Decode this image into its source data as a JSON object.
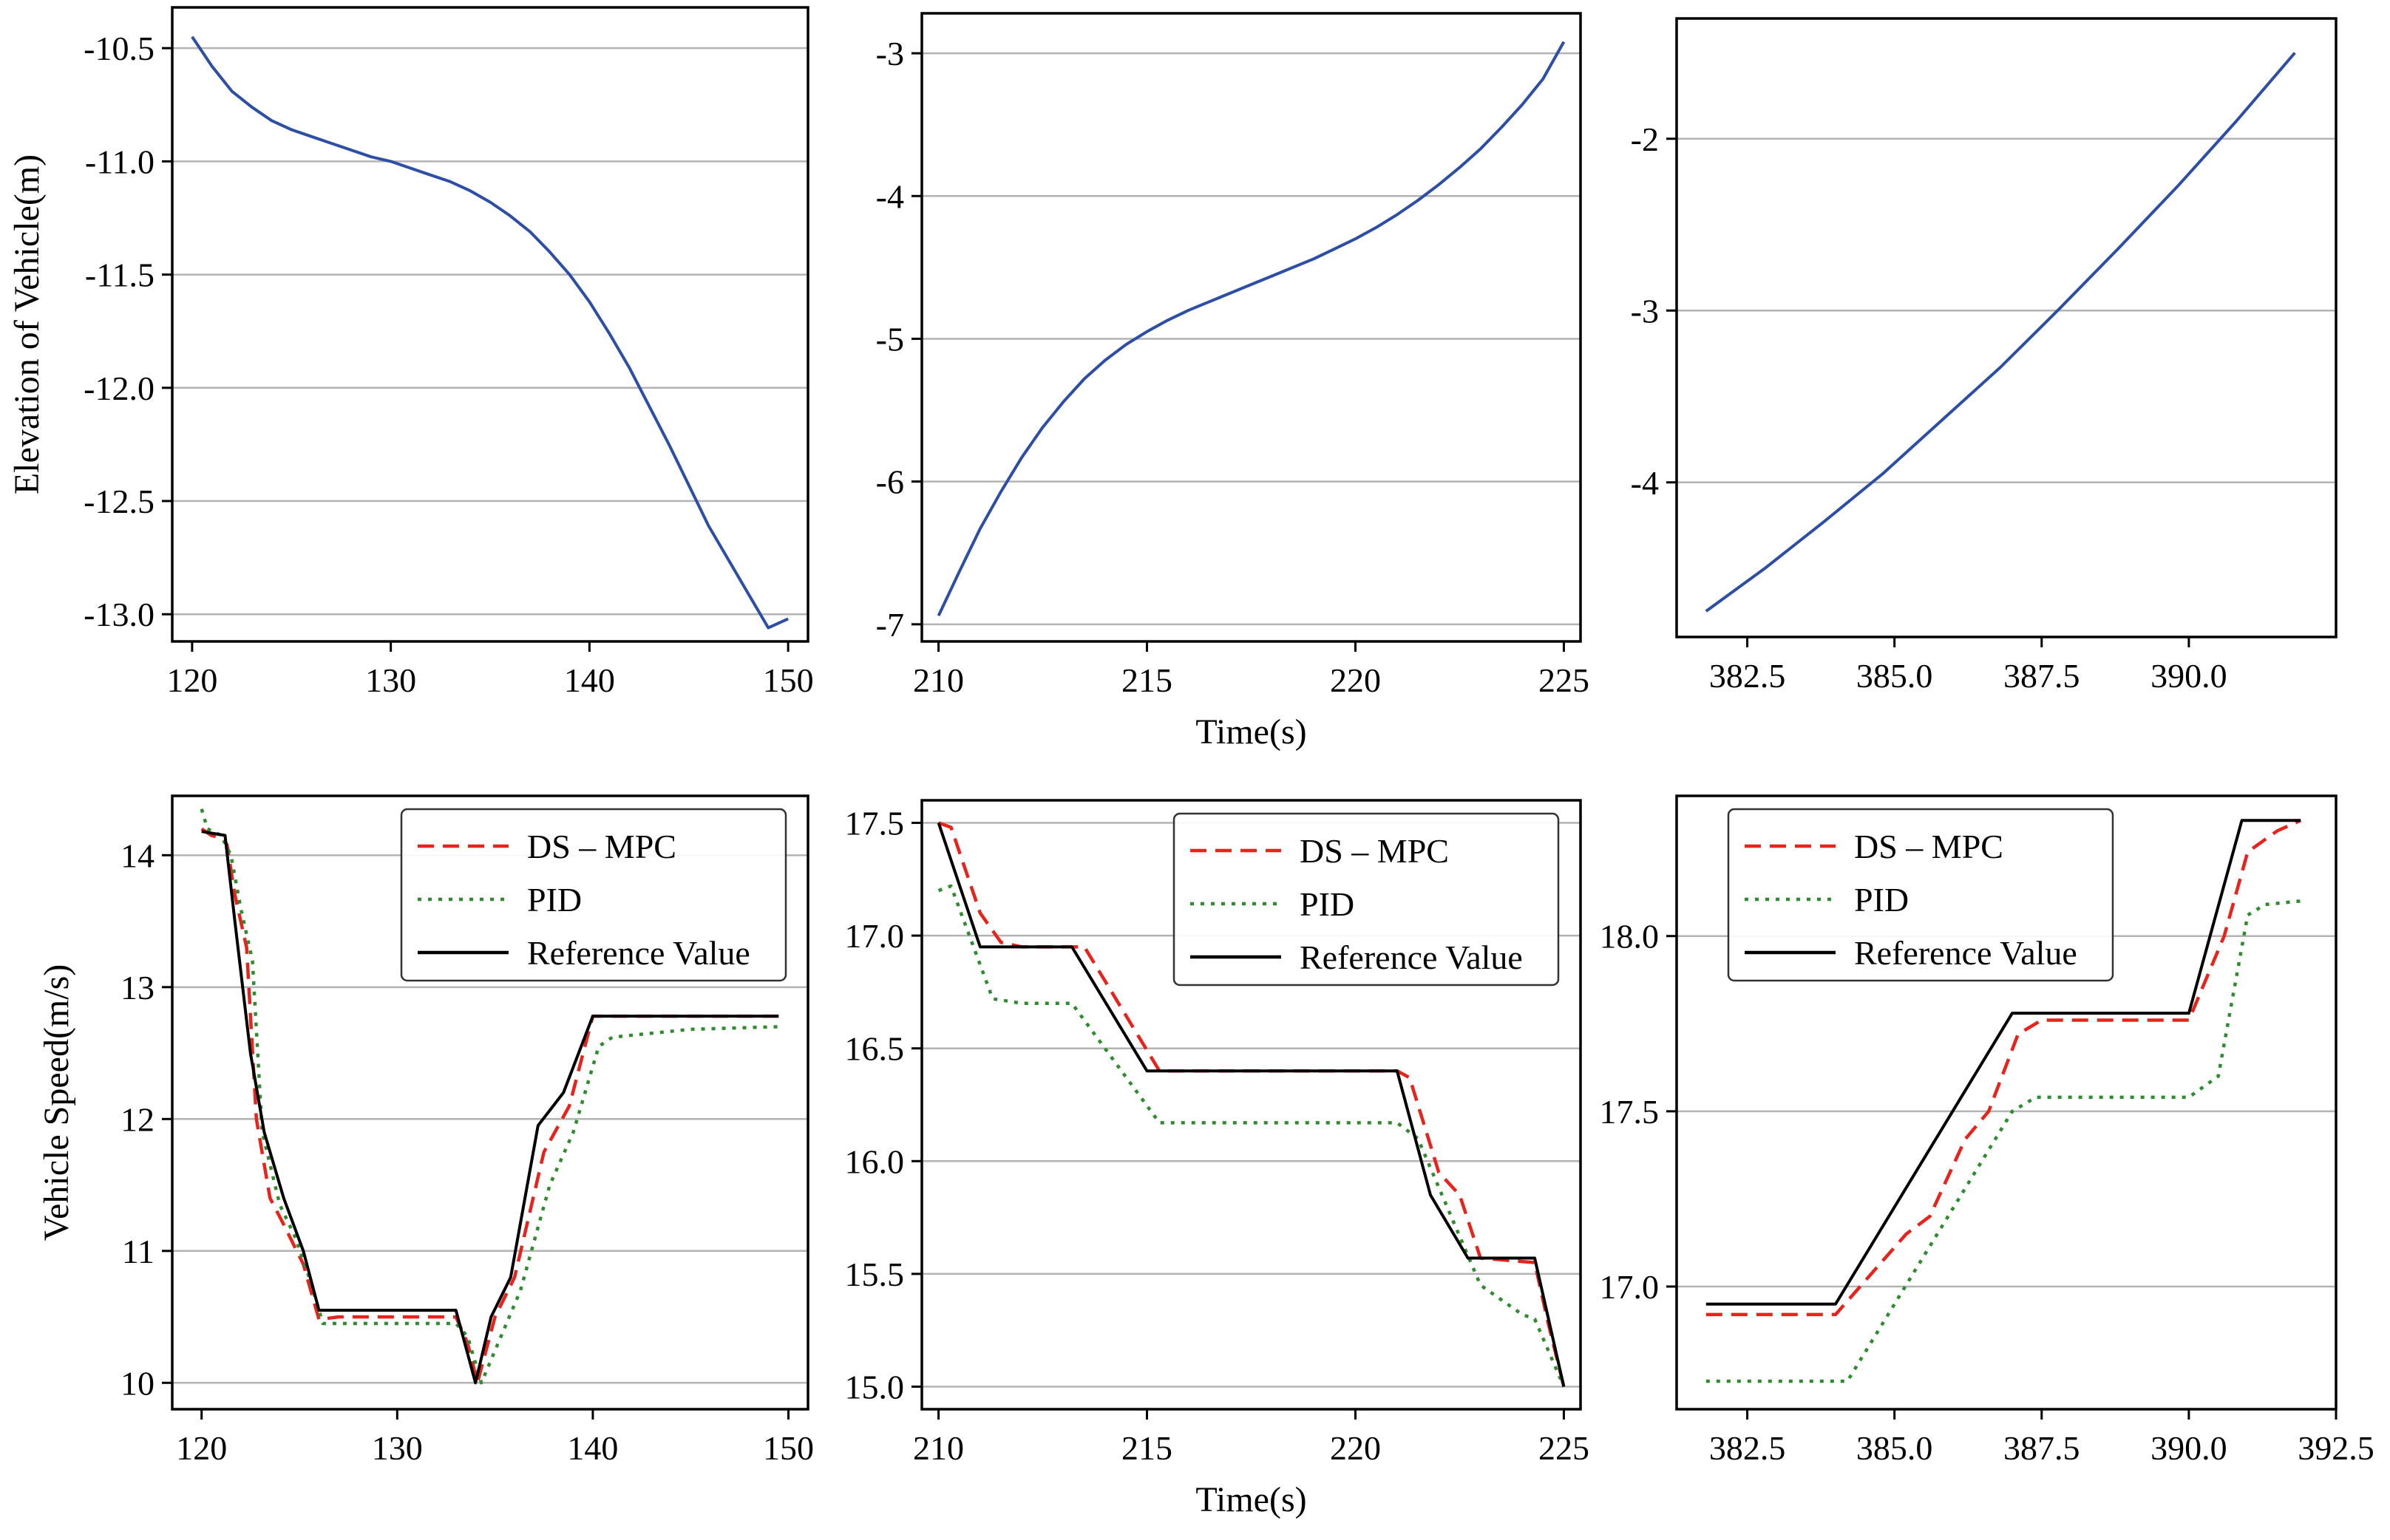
{
  "figure": {
    "shared_xlabel": "Time(s)",
    "colors": {
      "elevation": "#2d4ea6",
      "ds_mpc": "#e8231c",
      "pid": "#2e8b2e",
      "reference": "#000000",
      "grid": "#b3b3b3"
    }
  },
  "chart_data": [
    {
      "type": "line",
      "ylabel": "Elevation of Vehicle(m)",
      "xlabel": "",
      "xlim": [
        119,
        151
      ],
      "ylim": [
        -13.12,
        -10.32
      ],
      "xticks": [
        120,
        130,
        140,
        150
      ],
      "xtick_labels": [
        "120",
        "130",
        "140",
        "150"
      ],
      "yticks": [
        -10.5,
        -11.0,
        -11.5,
        -12.0,
        -12.5,
        -13.0
      ],
      "ytick_labels": [
        "-10.5",
        "-11.0",
        "-11.5",
        "-12.0",
        "-12.5",
        "-13.0"
      ],
      "grid": "horizontal",
      "series": [
        {
          "name": "Elevation",
          "color": "#2d4ea6",
          "style": "solid",
          "x": [
            120,
            121,
            122,
            123,
            124,
            125,
            126,
            127,
            128,
            129,
            130,
            131,
            132,
            133,
            134,
            135,
            136,
            137,
            138,
            139,
            140,
            141,
            142,
            143,
            144,
            145,
            146,
            147,
            148,
            149,
            150
          ],
          "y": [
            -10.45,
            -10.58,
            -10.69,
            -10.76,
            -10.82,
            -10.86,
            -10.89,
            -10.92,
            -10.95,
            -10.98,
            -11.0,
            -11.03,
            -11.06,
            -11.09,
            -11.13,
            -11.18,
            -11.24,
            -11.31,
            -11.4,
            -11.5,
            -11.62,
            -11.76,
            -11.91,
            -12.08,
            -12.25,
            -12.43,
            -12.61,
            -12.76,
            -12.91,
            -13.06,
            -13.02
          ]
        }
      ]
    },
    {
      "type": "line",
      "ylabel": "",
      "xlabel": "Time(s)",
      "xlim": [
        209.6,
        225.4
      ],
      "ylim": [
        -7.12,
        -2.72
      ],
      "xticks": [
        210,
        215,
        220,
        225
      ],
      "xtick_labels": [
        "210",
        "215",
        "220",
        "225"
      ],
      "yticks": [
        -3,
        -4,
        -5,
        -6,
        -7
      ],
      "ytick_labels": [
        "-3",
        "-4",
        "-5",
        "-6",
        "-7"
      ],
      "grid": "horizontal",
      "series": [
        {
          "name": "Elevation",
          "color": "#2d4ea6",
          "style": "solid",
          "x": [
            210,
            210.5,
            211,
            211.5,
            212,
            212.5,
            213,
            213.5,
            214,
            214.5,
            215,
            215.5,
            216,
            216.5,
            217,
            217.5,
            218,
            218.5,
            219,
            219.5,
            220,
            220.5,
            221,
            221.5,
            222,
            222.5,
            223,
            223.5,
            224,
            224.5,
            225
          ],
          "y": [
            -6.94,
            -6.63,
            -6.33,
            -6.07,
            -5.83,
            -5.62,
            -5.44,
            -5.28,
            -5.15,
            -5.04,
            -4.95,
            -4.87,
            -4.8,
            -4.74,
            -4.68,
            -4.62,
            -4.56,
            -4.5,
            -4.44,
            -4.37,
            -4.3,
            -4.22,
            -4.13,
            -4.03,
            -3.92,
            -3.8,
            -3.67,
            -3.52,
            -3.36,
            -3.18,
            -2.92
          ]
        }
      ]
    },
    {
      "type": "line",
      "ylabel": "",
      "xlabel": "",
      "xlim": [
        381.3,
        392.5
      ],
      "ylim": [
        -4.9,
        -1.3
      ],
      "xticks": [
        382.5,
        385.0,
        387.5,
        390.0
      ],
      "xtick_labels": [
        "382.5",
        "385.0",
        "387.5",
        "390.0"
      ],
      "yticks": [
        -2,
        -3,
        -4
      ],
      "ytick_labels": [
        "-2",
        "-3",
        "-4"
      ],
      "grid": "horizontal",
      "series": [
        {
          "name": "Elevation",
          "color": "#2d4ea6",
          "style": "solid",
          "x": [
            381.8,
            382.8,
            383.8,
            384.8,
            385.8,
            386.8,
            387.8,
            388.8,
            389.8,
            390.8,
            391.8
          ],
          "y": [
            -4.75,
            -4.5,
            -4.23,
            -3.95,
            -3.64,
            -3.33,
            -2.99,
            -2.64,
            -2.28,
            -1.9,
            -1.5
          ]
        }
      ]
    },
    {
      "type": "line",
      "ylabel": "Vehicle Speed(m/s)",
      "xlabel": "",
      "xlim": [
        118.5,
        151
      ],
      "ylim": [
        9.8,
        14.45
      ],
      "xticks": [
        120,
        130,
        140,
        150
      ],
      "xtick_labels": [
        "120",
        "130",
        "140",
        "150"
      ],
      "yticks": [
        14,
        13,
        12,
        11,
        10
      ],
      "ytick_labels": [
        "14",
        "13",
        "12",
        "11",
        "10"
      ],
      "grid": "horizontal",
      "legend": {
        "location": "top-right",
        "entries": [
          "DS – MPC",
          "PID",
          "Reference Value"
        ]
      },
      "series": [
        {
          "name": "DS – MPC",
          "color": "#e8231c",
          "style": "dashed",
          "x": [
            120,
            120.5,
            121,
            121.3,
            121.7,
            122.3,
            122.8,
            123.5,
            124.2,
            125.2,
            126,
            127,
            133,
            133.6,
            134.1,
            135,
            136,
            137.5,
            138.8,
            140,
            141,
            145,
            149.5
          ],
          "y": [
            14.2,
            14.15,
            14.13,
            14.08,
            13.7,
            13.3,
            12,
            11.4,
            11.2,
            10.9,
            10.48,
            10.5,
            10.5,
            10.3,
            10.0,
            10.5,
            10.8,
            11.75,
            12.1,
            12.78,
            12.78,
            12.78,
            12.78
          ]
        },
        {
          "name": "PID",
          "color": "#2e8b2e",
          "style": "dotted",
          "x": [
            120,
            120.3,
            121,
            121.5,
            122,
            122.6,
            123.1,
            124,
            124.8,
            125.5,
            126.2,
            127,
            133,
            133.6,
            134.3,
            135.3,
            136.3,
            137.8,
            139,
            140.3,
            141,
            145,
            149.5
          ],
          "y": [
            14.35,
            14.2,
            14.15,
            14.0,
            13.6,
            13.2,
            11.9,
            11.35,
            11.1,
            10.8,
            10.45,
            10.45,
            10.45,
            10.35,
            10.0,
            10.35,
            10.7,
            11.5,
            11.9,
            12.55,
            12.62,
            12.68,
            12.7
          ]
        },
        {
          "name": "Reference Value",
          "color": "#000000",
          "style": "solid",
          "x": [
            120,
            121.2,
            121.7,
            122.5,
            123.2,
            124.2,
            125.2,
            126,
            133,
            134,
            134.8,
            135.8,
            137.2,
            138.5,
            140,
            145,
            149.5
          ],
          "y": [
            14.18,
            14.15,
            13.5,
            12.5,
            11.9,
            11.4,
            11.0,
            10.55,
            10.55,
            10.0,
            10.5,
            10.8,
            11.95,
            12.2,
            12.78,
            12.78,
            12.78
          ]
        }
      ]
    },
    {
      "type": "line",
      "ylabel": "",
      "xlabel": "Time(s)",
      "xlim": [
        209.6,
        225.4
      ],
      "ylim": [
        14.9,
        17.6
      ],
      "xticks": [
        210,
        215,
        220,
        225
      ],
      "xtick_labels": [
        "210",
        "215",
        "220",
        "225"
      ],
      "yticks": [
        17.5,
        17.0,
        16.5,
        16.0,
        15.5,
        15.0
      ],
      "ytick_labels": [
        "17.5",
        "17.0",
        "16.5",
        "16.0",
        "15.5",
        "15.0"
      ],
      "grid": "horizontal",
      "legend": {
        "location": "top-right",
        "entries": [
          "DS – MPC",
          "PID",
          "Reference Value"
        ]
      },
      "series": [
        {
          "name": "DS – MPC",
          "color": "#e8231c",
          "style": "dashed",
          "x": [
            210,
            210.3,
            211,
            211.5,
            212,
            213,
            213.5,
            215.3,
            221,
            221.3,
            222,
            222.5,
            223,
            224.3,
            224.6,
            225
          ],
          "y": [
            17.5,
            17.48,
            17.1,
            16.97,
            16.95,
            16.95,
            16.95,
            16.4,
            16.4,
            16.37,
            15.95,
            15.85,
            15.57,
            15.55,
            15.3,
            15.0
          ]
        },
        {
          "name": "PID",
          "color": "#2e8b2e",
          "style": "dotted",
          "x": [
            210,
            210.3,
            211.3,
            212,
            213.2,
            215.3,
            216,
            221,
            221.5,
            223,
            224,
            224.3,
            225
          ],
          "y": [
            17.2,
            17.22,
            16.72,
            16.7,
            16.7,
            16.17,
            16.17,
            16.17,
            16.1,
            15.45,
            15.32,
            15.3,
            15.0
          ]
        },
        {
          "name": "Reference Value",
          "color": "#000000",
          "style": "solid",
          "x": [
            210,
            211,
            213.2,
            215,
            221,
            221.8,
            222.7,
            224.3,
            225
          ],
          "y": [
            17.5,
            16.95,
            16.95,
            16.4,
            16.4,
            15.85,
            15.57,
            15.57,
            15.0
          ]
        }
      ]
    },
    {
      "type": "line",
      "ylabel": "",
      "xlabel": "",
      "xlim": [
        381.3,
        392.5
      ],
      "ylim": [
        16.65,
        18.4
      ],
      "xticks": [
        382.5,
        385.0,
        387.5,
        390.0,
        392.5
      ],
      "xtick_labels": [
        "382.5",
        "385.0",
        "387.5",
        "390.0",
        "392.5"
      ],
      "yticks": [
        18.0,
        17.5,
        17.0
      ],
      "ytick_labels": [
        "18.0",
        "17.5",
        "17.0"
      ],
      "grid": "horizontal",
      "legend": {
        "location": "top-left",
        "entries": [
          "DS – MPC",
          "PID",
          "Reference Value"
        ]
      },
      "series": [
        {
          "name": "DS – MPC",
          "color": "#e8231c",
          "style": "dashed",
          "x": [
            381.8,
            384,
            385.2,
            385.6,
            386.2,
            386.6,
            387.1,
            387.5,
            390,
            390.6,
            391,
            391.5,
            391.9
          ],
          "y": [
            16.92,
            16.92,
            17.15,
            17.2,
            17.42,
            17.5,
            17.72,
            17.76,
            17.76,
            18.0,
            18.24,
            18.3,
            18.33
          ]
        },
        {
          "name": "PID",
          "color": "#2e8b2e",
          "style": "dotted",
          "x": [
            381.8,
            384.2,
            387,
            387.4,
            390,
            390.5,
            391,
            391.3,
            391.9
          ],
          "y": [
            16.73,
            16.73,
            17.5,
            17.54,
            17.54,
            17.6,
            18.06,
            18.09,
            18.1
          ]
        },
        {
          "name": "Reference Value",
          "color": "#000000",
          "style": "solid",
          "x": [
            381.8,
            384,
            387,
            390,
            390.9,
            391.9
          ],
          "y": [
            16.95,
            16.95,
            17.78,
            17.78,
            18.33,
            18.33
          ]
        }
      ]
    }
  ]
}
